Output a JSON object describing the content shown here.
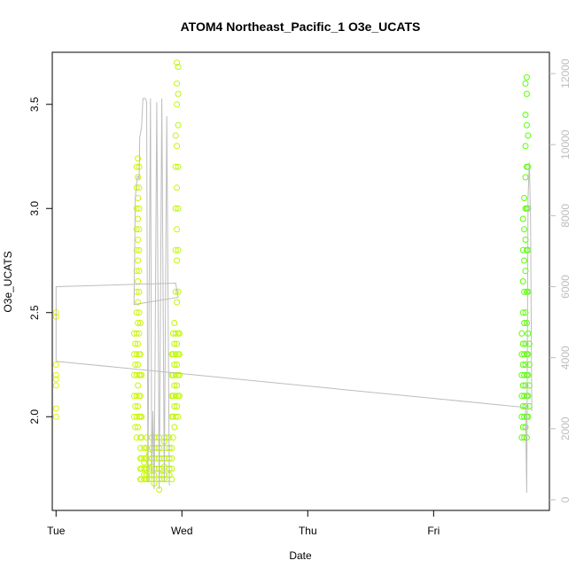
{
  "chart_data": {
    "type": "scatter",
    "title": "ATOM4 Northeast_Pacific_1 O3e_UCATS",
    "xlabel": "Date",
    "ylabel": "O3e_UCATS",
    "x_ticks": [
      "Tue",
      "Wed",
      "Thu",
      "Fri"
    ],
    "x_range_days": [
      -0.03,
      3.92
    ],
    "ylim": [
      1.55,
      3.75
    ],
    "y_ticks": [
      "2.0",
      "2.5",
      "3.0",
      "3.5"
    ],
    "y2lim": [
      -300,
      12600
    ],
    "y2_ticks": [
      "0",
      "2000",
      "4000",
      "6000",
      "8000",
      "10000",
      "12000"
    ],
    "grid": false,
    "legend": "none",
    "series": [
      {
        "style": "points",
        "points": [
          [
            0.0,
            2.0
          ],
          [
            0.0,
            2.04
          ],
          [
            0.0,
            2.15
          ],
          [
            0.0,
            2.18
          ],
          [
            0.0,
            2.2
          ],
          [
            0.0,
            2.25
          ],
          [
            0.0,
            2.48
          ],
          [
            0.0,
            2.5
          ],
          [
            0.62,
            2.0
          ],
          [
            0.62,
            2.1
          ],
          [
            0.62,
            2.2
          ],
          [
            0.62,
            2.3
          ],
          [
            0.62,
            2.4
          ],
          [
            0.63,
            1.95
          ],
          [
            0.63,
            2.05
          ],
          [
            0.63,
            2.25
          ],
          [
            0.63,
            2.35
          ],
          [
            0.64,
            1.9
          ],
          [
            0.64,
            2.0
          ],
          [
            0.64,
            2.1
          ],
          [
            0.64,
            2.2
          ],
          [
            0.64,
            2.3
          ],
          [
            0.64,
            2.4
          ],
          [
            0.64,
            2.5
          ],
          [
            0.64,
            2.6
          ],
          [
            0.64,
            2.7
          ],
          [
            0.64,
            2.8
          ],
          [
            0.64,
            2.9
          ],
          [
            0.64,
            3.0
          ],
          [
            0.64,
            3.1
          ],
          [
            0.64,
            3.2
          ],
          [
            0.65,
            1.95
          ],
          [
            0.65,
            2.05
          ],
          [
            0.65,
            2.15
          ],
          [
            0.65,
            2.25
          ],
          [
            0.65,
            2.35
          ],
          [
            0.65,
            2.45
          ],
          [
            0.65,
            2.55
          ],
          [
            0.65,
            2.65
          ],
          [
            0.65,
            2.75
          ],
          [
            0.65,
            2.85
          ],
          [
            0.65,
            2.95
          ],
          [
            0.65,
            3.05
          ],
          [
            0.65,
            3.15
          ],
          [
            0.65,
            3.24
          ],
          [
            0.66,
            2.0
          ],
          [
            0.66,
            2.1
          ],
          [
            0.66,
            2.2
          ],
          [
            0.66,
            2.3
          ],
          [
            0.66,
            2.4
          ],
          [
            0.66,
            2.5
          ],
          [
            0.66,
            2.6
          ],
          [
            0.66,
            2.7
          ],
          [
            0.66,
            2.8
          ],
          [
            0.66,
            2.9
          ],
          [
            0.66,
            3.0
          ],
          [
            0.66,
            3.1
          ],
          [
            0.66,
            3.2
          ],
          [
            0.67,
            1.7
          ],
          [
            0.67,
            1.75
          ],
          [
            0.67,
            1.8
          ],
          [
            0.67,
            1.85
          ],
          [
            0.67,
            1.9
          ],
          [
            0.67,
            2.0
          ],
          [
            0.67,
            2.1
          ],
          [
            0.67,
            2.2
          ],
          [
            0.67,
            2.3
          ],
          [
            0.67,
            2.45
          ],
          [
            0.68,
            1.7
          ],
          [
            0.68,
            1.75
          ],
          [
            0.68,
            1.8
          ],
          [
            0.68,
            1.9
          ],
          [
            0.68,
            2.0
          ],
          [
            0.68,
            2.2
          ],
          [
            0.7,
            1.7
          ],
          [
            0.7,
            1.72
          ],
          [
            0.7,
            1.75
          ],
          [
            0.7,
            1.78
          ],
          [
            0.7,
            1.8
          ],
          [
            0.7,
            1.85
          ],
          [
            0.72,
            1.7
          ],
          [
            0.72,
            1.72
          ],
          [
            0.72,
            1.75
          ],
          [
            0.72,
            1.8
          ],
          [
            0.72,
            1.85
          ],
          [
            0.72,
            1.9
          ],
          [
            0.74,
            1.7
          ],
          [
            0.74,
            1.75
          ],
          [
            0.74,
            1.78
          ],
          [
            0.74,
            1.82
          ],
          [
            0.76,
            1.7
          ],
          [
            0.76,
            1.72
          ],
          [
            0.76,
            1.76
          ],
          [
            0.76,
            1.8
          ],
          [
            0.76,
            1.85
          ],
          [
            0.76,
            1.9
          ],
          [
            0.78,
            1.68
          ],
          [
            0.78,
            1.72
          ],
          [
            0.78,
            1.75
          ],
          [
            0.78,
            1.8
          ],
          [
            0.78,
            1.85
          ],
          [
            0.78,
            1.9
          ],
          [
            0.8,
            1.7
          ],
          [
            0.8,
            1.75
          ],
          [
            0.8,
            1.8
          ],
          [
            0.8,
            1.85
          ],
          [
            0.8,
            1.9
          ],
          [
            0.82,
            1.65
          ],
          [
            0.82,
            1.7
          ],
          [
            0.82,
            1.75
          ],
          [
            0.82,
            1.8
          ],
          [
            0.82,
            1.85
          ],
          [
            0.82,
            1.9
          ],
          [
            0.84,
            1.7
          ],
          [
            0.84,
            1.72
          ],
          [
            0.84,
            1.75
          ],
          [
            0.84,
            1.8
          ],
          [
            0.84,
            1.85
          ],
          [
            0.86,
            1.7
          ],
          [
            0.86,
            1.72
          ],
          [
            0.86,
            1.76
          ],
          [
            0.86,
            1.8
          ],
          [
            0.86,
            1.88
          ],
          [
            0.86,
            1.9
          ],
          [
            0.88,
            1.7
          ],
          [
            0.88,
            1.75
          ],
          [
            0.88,
            1.8
          ],
          [
            0.88,
            1.85
          ],
          [
            0.88,
            1.9
          ],
          [
            0.9,
            1.72
          ],
          [
            0.9,
            1.75
          ],
          [
            0.9,
            1.8
          ],
          [
            0.9,
            1.85
          ],
          [
            0.9,
            1.9
          ],
          [
            0.92,
            1.7
          ],
          [
            0.92,
            1.75
          ],
          [
            0.92,
            1.8
          ],
          [
            0.92,
            1.85
          ],
          [
            0.92,
            2.0
          ],
          [
            0.92,
            2.1
          ],
          [
            0.92,
            2.2
          ],
          [
            0.92,
            2.3
          ],
          [
            0.93,
            1.9
          ],
          [
            0.93,
            2.0
          ],
          [
            0.93,
            2.1
          ],
          [
            0.93,
            2.2
          ],
          [
            0.93,
            2.3
          ],
          [
            0.93,
            2.4
          ],
          [
            0.94,
            1.95
          ],
          [
            0.94,
            2.05
          ],
          [
            0.94,
            2.15
          ],
          [
            0.94,
            2.25
          ],
          [
            0.94,
            2.35
          ],
          [
            0.94,
            2.45
          ],
          [
            0.95,
            2.0
          ],
          [
            0.95,
            2.1
          ],
          [
            0.95,
            2.2
          ],
          [
            0.95,
            2.3
          ],
          [
            0.95,
            2.4
          ],
          [
            0.95,
            2.6
          ],
          [
            0.95,
            2.8
          ],
          [
            0.95,
            3.0
          ],
          [
            0.95,
            3.2
          ],
          [
            0.95,
            3.35
          ],
          [
            0.96,
            2.05
          ],
          [
            0.96,
            2.15
          ],
          [
            0.96,
            2.25
          ],
          [
            0.96,
            2.35
          ],
          [
            0.96,
            2.55
          ],
          [
            0.96,
            2.75
          ],
          [
            0.96,
            2.9
          ],
          [
            0.96,
            3.1
          ],
          [
            0.96,
            3.3
          ],
          [
            0.96,
            3.5
          ],
          [
            0.96,
            3.6
          ],
          [
            0.96,
            3.7
          ],
          [
            0.97,
            2.0
          ],
          [
            0.97,
            2.1
          ],
          [
            0.97,
            2.2
          ],
          [
            0.97,
            2.3
          ],
          [
            0.97,
            2.4
          ],
          [
            0.97,
            2.6
          ],
          [
            0.97,
            2.8
          ],
          [
            0.97,
            3.0
          ],
          [
            0.97,
            3.2
          ],
          [
            0.97,
            3.4
          ],
          [
            0.97,
            3.55
          ],
          [
            0.97,
            3.68
          ],
          [
            0.98,
            2.1
          ],
          [
            0.98,
            2.2
          ],
          [
            0.98,
            2.3
          ],
          [
            0.98,
            2.4
          ],
          [
            3.7,
            1.9
          ],
          [
            3.7,
            2.0
          ],
          [
            3.7,
            2.1
          ],
          [
            3.7,
            2.2
          ],
          [
            3.7,
            2.3
          ],
          [
            3.7,
            2.4
          ],
          [
            3.71,
            1.95
          ],
          [
            3.71,
            2.05
          ],
          [
            3.71,
            2.15
          ],
          [
            3.71,
            2.25
          ],
          [
            3.71,
            2.35
          ],
          [
            3.71,
            2.5
          ],
          [
            3.71,
            2.65
          ],
          [
            3.71,
            2.8
          ],
          [
            3.71,
            2.95
          ],
          [
            3.72,
            1.9
          ],
          [
            3.72,
            2.0
          ],
          [
            3.72,
            2.1
          ],
          [
            3.72,
            2.2
          ],
          [
            3.72,
            2.3
          ],
          [
            3.72,
            2.45
          ],
          [
            3.72,
            2.6
          ],
          [
            3.72,
            2.75
          ],
          [
            3.72,
            2.9
          ],
          [
            3.72,
            3.05
          ],
          [
            3.73,
            1.95
          ],
          [
            3.73,
            2.05
          ],
          [
            3.73,
            2.15
          ],
          [
            3.73,
            2.25
          ],
          [
            3.73,
            2.35
          ],
          [
            3.73,
            2.5
          ],
          [
            3.73,
            2.7
          ],
          [
            3.73,
            2.85
          ],
          [
            3.73,
            3.0
          ],
          [
            3.73,
            3.15
          ],
          [
            3.73,
            3.3
          ],
          [
            3.73,
            3.45
          ],
          [
            3.73,
            3.6
          ],
          [
            3.74,
            1.9
          ],
          [
            3.74,
            2.0
          ],
          [
            3.74,
            2.1
          ],
          [
            3.74,
            2.2
          ],
          [
            3.74,
            2.3
          ],
          [
            3.74,
            2.45
          ],
          [
            3.74,
            2.6
          ],
          [
            3.74,
            2.8
          ],
          [
            3.74,
            3.0
          ],
          [
            3.74,
            3.2
          ],
          [
            3.74,
            3.4
          ],
          [
            3.74,
            3.55
          ],
          [
            3.74,
            3.63
          ],
          [
            3.75,
            2.0
          ],
          [
            3.75,
            2.1
          ],
          [
            3.75,
            2.2
          ],
          [
            3.75,
            2.3
          ],
          [
            3.75,
            2.4
          ],
          [
            3.75,
            2.6
          ],
          [
            3.75,
            2.8
          ],
          [
            3.75,
            3.0
          ],
          [
            3.75,
            3.2
          ],
          [
            3.75,
            3.35
          ],
          [
            3.76,
            2.05
          ],
          [
            3.76,
            2.15
          ],
          [
            3.76,
            2.25
          ],
          [
            3.76,
            2.35
          ]
        ]
      },
      {
        "style": "line",
        "axis": "right",
        "points": [
          [
            0.0,
            3900
          ],
          [
            0.0,
            6000
          ],
          [
            0.95,
            6100
          ],
          [
            0.97,
            5700
          ],
          [
            0.62,
            5500
          ],
          [
            0.63,
            8500
          ],
          [
            0.645,
            9100
          ],
          [
            0.655,
            9100
          ],
          [
            0.66,
            9000
          ],
          [
            0.665,
            10200
          ],
          [
            0.68,
            10500
          ],
          [
            0.69,
            11300
          ],
          [
            0.71,
            11300
          ],
          [
            0.72,
            11200
          ],
          [
            0.73,
            500
          ],
          [
            0.75,
            11300
          ],
          [
            0.76,
            700
          ],
          [
            0.77,
            2500
          ],
          [
            0.78,
            300
          ],
          [
            0.8,
            11200
          ],
          [
            0.82,
            300
          ],
          [
            0.84,
            11300
          ],
          [
            0.86,
            500
          ],
          [
            0.88,
            10800
          ],
          [
            0.9,
            400
          ]
        ]
      },
      {
        "style": "line",
        "axis": "right",
        "points": [
          [
            0.0,
            3900
          ],
          [
            3.73,
            2600
          ],
          [
            3.74,
            200
          ],
          [
            3.75,
            8500
          ],
          [
            3.76,
            9500
          ],
          [
            3.77,
            8000
          ],
          [
            3.78,
            2500
          ]
        ]
      }
    ]
  }
}
